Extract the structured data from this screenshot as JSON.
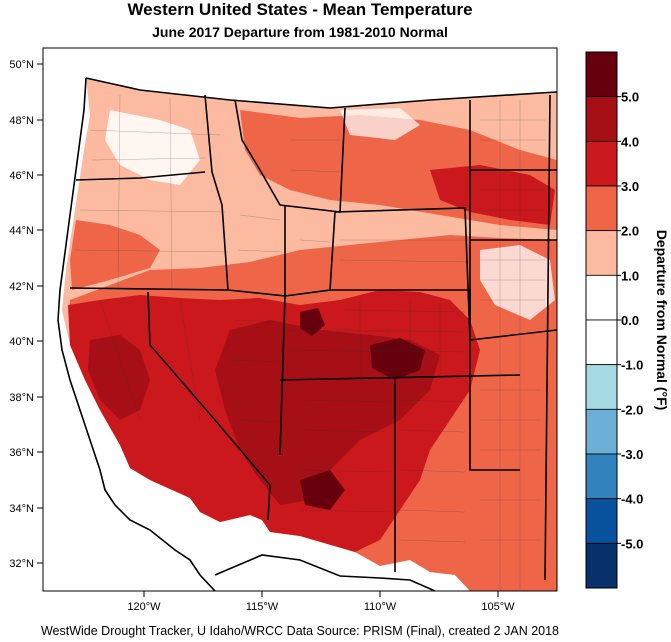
{
  "title": "Western United States - Mean Temperature",
  "subtitle": "June 2017  Departure from 1981-2010 Normal",
  "footer": "WestWide Drought Tracker, U Idaho/WRCC Data Source: PRISM (Final), created  2 JAN 2018",
  "map": {
    "lat_ticks": [
      "50°N",
      "48°N",
      "46°N",
      "44°N",
      "42°N",
      "40°N",
      "38°N",
      "36°N",
      "34°N",
      "32°N"
    ],
    "lon_ticks": [
      "120°W",
      "115°W",
      "110°W",
      "105°W"
    ]
  },
  "colorbar": {
    "title": "Departure from Normal (°F)",
    "labels": [
      "5.0",
      "4.0",
      "3.0",
      "2.0",
      "1.0",
      "0.0",
      "-1.0",
      "-2.0",
      "-3.0",
      "-4.0",
      "-5.0"
    ],
    "colors": [
      "#67000d",
      "#a50f15",
      "#cb181d",
      "#ef6548",
      "#fcbba1",
      "#ffffff",
      "#ffffff",
      "#a6dbe4",
      "#6baed6",
      "#3182bd",
      "#08519c",
      "#08306b"
    ]
  }
}
